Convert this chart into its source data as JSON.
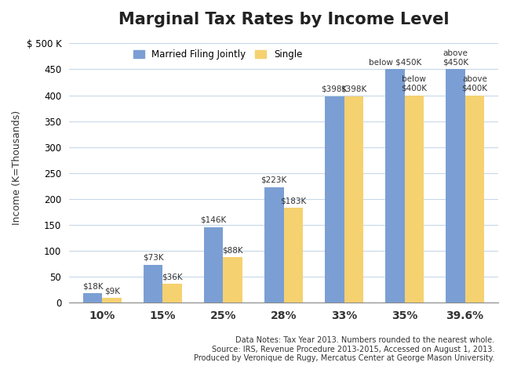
{
  "title": "Marginal Tax Rates by Income Level",
  "xlabel": "",
  "ylabel": "Income (K=Thousands)",
  "categories": [
    "10%",
    "15%",
    "25%",
    "28%",
    "33%",
    "35%",
    "39.6%"
  ],
  "married_values": [
    18,
    73,
    146,
    223,
    398,
    450,
    450
  ],
  "single_values": [
    9,
    36,
    88,
    183,
    398,
    400,
    400
  ],
  "married_color": "#7B9FD4",
  "single_color": "#F5D170",
  "bar_labels_married": [
    "$18K",
    "$73K",
    "$146K",
    "$223K",
    "$398K",
    "below $450K",
    "above\n$450K"
  ],
  "bar_labels_single": [
    "$9K",
    "$36K",
    "$88K",
    "$183K",
    "$398K",
    "below\n$400K",
    "above\n$400K"
  ],
  "ylim": [
    0,
    520
  ],
  "yticks": [
    0,
    50,
    100,
    150,
    200,
    250,
    300,
    350,
    400,
    450,
    500
  ],
  "ytick_labels": [
    "0",
    "50",
    "100",
    "150",
    "200",
    "250",
    "300",
    "350",
    "400",
    "450",
    "$ 500 K"
  ],
  "background_color": "#FFFFFF",
  "grid_color": "#C8D8E8",
  "footnote_lines": [
    "Data Notes: Tax Year 2013. Numbers rounded to the nearest whole.",
    "Source: IRS, Revenue Procedure 2013-2015, Accessed on August 1, 2013.",
    "Produced by Veronique de Rugy, Mercatus Center at George Mason University."
  ],
  "legend_labels": [
    "Married Filing Jointly",
    "Single"
  ],
  "title_fontsize": 15,
  "axis_label_fontsize": 8.5,
  "bar_label_fontsize": 7.5,
  "footnote_fontsize": 7.0,
  "footnote_color": "#333333",
  "bar_width": 0.32
}
